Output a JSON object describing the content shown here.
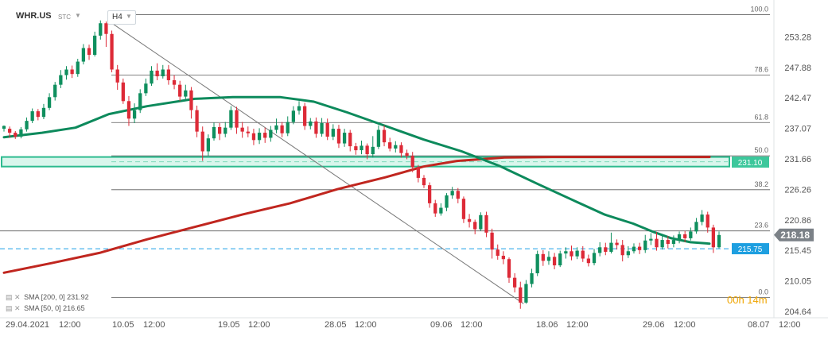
{
  "header": {
    "symbol": "WHR.US",
    "market": "STC",
    "timeframe": "H4"
  },
  "indicators": [
    {
      "text": "SMA [200, 0] 231.92",
      "color": "#c0261f"
    },
    {
      "text": "SMA [50, 0] 216.65",
      "color": "#0d8a5c"
    }
  ],
  "countdown": "00h 14m",
  "chart_data": {
    "type": "candlestick",
    "ylim": [
      204.64,
      257.0
    ],
    "y_ticks": [
      {
        "value": 253.28,
        "label": "253.28"
      },
      {
        "value": 247.88,
        "label": "247.88"
      },
      {
        "value": 242.47,
        "label": "242.47"
      },
      {
        "value": 237.07,
        "label": "237.07"
      },
      {
        "value": 231.66,
        "label": "231.66"
      },
      {
        "value": 226.26,
        "label": "226.26"
      },
      {
        "value": 220.86,
        "label": "220.86"
      },
      {
        "value": 215.45,
        "label": "215.45"
      },
      {
        "value": 210.05,
        "label": "210.05"
      },
      {
        "value": 204.64,
        "label": "204.64"
      }
    ],
    "x_tick_labels": [
      "29.04.2021",
      "12:00",
      "10.05",
      "12:00",
      "19.05",
      "12:00",
      "28.05",
      "12:00",
      "09.06",
      "12:00",
      "18.06",
      "12:00",
      "29.06",
      "12:00",
      "08.07",
      "12:00"
    ],
    "x_range": [
      0,
      150
    ],
    "x_ticks": [
      0,
      12,
      22,
      34,
      44,
      56,
      66,
      78,
      88,
      100,
      110,
      122,
      132,
      144,
      153,
      165
    ],
    "fibonacci": {
      "levels": [
        {
          "label": "100.0",
          "value": 257.2
        },
        {
          "label": "78.6",
          "value": 246.5
        },
        {
          "label": "61.8",
          "value": 238.1
        },
        {
          "label": "50.0",
          "value": 232.2
        },
        {
          "label": "38.2",
          "value": 226.2
        },
        {
          "label": "23.6",
          "value": 218.9
        },
        {
          "label": "0.0",
          "value": 207.1
        }
      ]
    },
    "price_labels": {
      "current": {
        "value": 218.18,
        "label": "218.18"
      },
      "zone": {
        "value": 231.1,
        "label": "231.10"
      },
      "dashed": {
        "value": 215.75,
        "label": "215.75"
      }
    },
    "zone": {
      "low": 230.3,
      "high": 232.0
    },
    "trendline": {
      "x1": 23,
      "y1": 255.5,
      "x2": 109,
      "y2": 206.0
    },
    "sma200": [
      [
        0,
        211.5
      ],
      [
        10,
        213.2
      ],
      [
        20,
        215.0
      ],
      [
        30,
        217.4
      ],
      [
        40,
        219.6
      ],
      [
        50,
        221.8
      ],
      [
        60,
        223.8
      ],
      [
        70,
        226.3
      ],
      [
        80,
        228.4
      ],
      [
        88,
        230.3
      ],
      [
        95,
        231.3
      ],
      [
        105,
        231.9
      ],
      [
        115,
        232.0
      ],
      [
        125,
        232.0
      ],
      [
        135,
        232.0
      ],
      [
        148,
        232.0
      ]
    ],
    "sma50": [
      [
        0,
        235.5
      ],
      [
        8,
        236.3
      ],
      [
        15,
        237.2
      ],
      [
        22,
        239.6
      ],
      [
        30,
        241.0
      ],
      [
        40,
        242.3
      ],
      [
        48,
        242.6
      ],
      [
        58,
        242.6
      ],
      [
        65,
        241.8
      ],
      [
        72,
        239.9
      ],
      [
        80,
        237.5
      ],
      [
        88,
        235.1
      ],
      [
        96,
        233.0
      ],
      [
        104,
        230.4
      ],
      [
        112,
        227.2
      ],
      [
        120,
        224.1
      ],
      [
        126,
        221.8
      ],
      [
        132,
        220.2
      ],
      [
        136,
        218.8
      ],
      [
        140,
        217.6
      ],
      [
        144,
        216.9
      ],
      [
        148,
        216.65
      ]
    ],
    "candles": [
      [
        237.0,
        237.5,
        236.5,
        237.6
      ],
      [
        237.0,
        236.3,
        235.4,
        237.4
      ],
      [
        236.3,
        235.6,
        235.2,
        236.6
      ],
      [
        235.6,
        236.9,
        235.3,
        237.3
      ],
      [
        236.9,
        238.4,
        236.5,
        239.0
      ],
      [
        238.4,
        240.1,
        238.0,
        240.6
      ],
      [
        240.1,
        239.1,
        238.5,
        240.5
      ],
      [
        239.1,
        240.7,
        238.7,
        241.4
      ],
      [
        240.7,
        242.6,
        240.3,
        243.3
      ],
      [
        242.6,
        244.8,
        242.0,
        245.3
      ],
      [
        244.8,
        246.5,
        244.2,
        247.4
      ],
      [
        246.5,
        247.5,
        245.7,
        248.1
      ],
      [
        247.5,
        246.7,
        246.0,
        248.2
      ],
      [
        246.7,
        248.9,
        246.2,
        249.4
      ],
      [
        248.9,
        251.3,
        248.4,
        252.0
      ],
      [
        251.3,
        250.1,
        249.2,
        251.9
      ],
      [
        250.1,
        253.5,
        249.8,
        254.2
      ],
      [
        253.5,
        255.7,
        252.8,
        256.2
      ],
      [
        255.7,
        253.8,
        251.5,
        256.0
      ],
      [
        253.8,
        247.5,
        247.0,
        254.4
      ],
      [
        247.5,
        245.2,
        243.9,
        248.3
      ],
      [
        245.2,
        241.9,
        241.4,
        245.9
      ],
      [
        241.9,
        238.8,
        237.5,
        242.8
      ],
      [
        238.8,
        240.3,
        238.0,
        241.5
      ],
      [
        240.3,
        243.3,
        239.8,
        244.0
      ],
      [
        243.3,
        245.0,
        242.8,
        245.9
      ],
      [
        245.0,
        247.3,
        244.6,
        248.1
      ],
      [
        247.3,
        246.3,
        245.6,
        248.6
      ],
      [
        246.3,
        247.5,
        245.9,
        248.3
      ],
      [
        247.5,
        245.6,
        244.8,
        248.3
      ],
      [
        245.6,
        244.8,
        244.0,
        246.5
      ],
      [
        244.8,
        242.7,
        241.9,
        245.5
      ],
      [
        242.7,
        243.8,
        242.0,
        244.8
      ],
      [
        243.8,
        240.3,
        238.8,
        244.4
      ],
      [
        240.3,
        236.5,
        235.5,
        241.1
      ],
      [
        236.5,
        233.0,
        231.3,
        237.4
      ],
      [
        233.0,
        235.3,
        232.2,
        236.0
      ],
      [
        235.3,
        237.3,
        234.9,
        238.1
      ],
      [
        237.3,
        236.1,
        235.0,
        238.0
      ],
      [
        236.1,
        237.2,
        235.5,
        238.2
      ],
      [
        237.2,
        240.3,
        236.8,
        241.0
      ],
      [
        240.3,
        237.2,
        236.1,
        240.9
      ],
      [
        237.2,
        236.5,
        235.4,
        238.2
      ],
      [
        236.5,
        236.2,
        235.5,
        237.4
      ],
      [
        236.2,
        235.0,
        234.1,
        237.0
      ],
      [
        235.0,
        236.3,
        234.3,
        237.1
      ],
      [
        236.3,
        235.4,
        234.5,
        237.2
      ],
      [
        235.4,
        236.8,
        234.7,
        237.5
      ],
      [
        236.8,
        237.6,
        236.2,
        238.8
      ],
      [
        237.6,
        236.2,
        235.5,
        238.2
      ],
      [
        236.2,
        238.2,
        235.7,
        239.2
      ],
      [
        238.2,
        240.2,
        237.8,
        241.0
      ],
      [
        240.2,
        241.0,
        239.5,
        241.9
      ],
      [
        241.0,
        237.5,
        236.8,
        241.6
      ],
      [
        237.5,
        238.3,
        236.9,
        238.9
      ],
      [
        238.3,
        236.1,
        235.4,
        239.0
      ],
      [
        236.1,
        238.0,
        235.6,
        238.9
      ],
      [
        238.0,
        235.6,
        235.0,
        238.8
      ],
      [
        235.6,
        237.0,
        235.0,
        237.8
      ],
      [
        237.0,
        234.4,
        233.6,
        237.7
      ],
      [
        234.4,
        236.3,
        233.8,
        237.0
      ],
      [
        236.3,
        233.9,
        233.0,
        236.8
      ],
      [
        233.9,
        233.2,
        232.4,
        234.5
      ],
      [
        233.2,
        234.0,
        232.5,
        234.9
      ],
      [
        234.0,
        232.5,
        231.6,
        234.4
      ],
      [
        232.5,
        233.8,
        231.9,
        235.7
      ],
      [
        233.8,
        236.8,
        233.4,
        237.6
      ],
      [
        236.8,
        234.6,
        233.9,
        237.6
      ],
      [
        234.6,
        233.5,
        233.0,
        235.4
      ],
      [
        233.5,
        234.1,
        232.8,
        234.8
      ],
      [
        234.1,
        232.7,
        231.9,
        234.6
      ],
      [
        232.7,
        232.2,
        231.6,
        233.3
      ],
      [
        232.2,
        230.2,
        229.3,
        232.9
      ],
      [
        230.2,
        228.3,
        227.5,
        230.6
      ],
      [
        228.3,
        227.0,
        226.5,
        228.8
      ],
      [
        227.0,
        223.8,
        223.0,
        227.5
      ],
      [
        223.8,
        222.0,
        221.4,
        224.4
      ],
      [
        222.0,
        223.0,
        221.6,
        223.8
      ],
      [
        223.0,
        225.2,
        222.4,
        225.6
      ],
      [
        225.2,
        226.0,
        224.6,
        226.7
      ],
      [
        226.0,
        224.6,
        223.8,
        226.5
      ],
      [
        224.6,
        221.0,
        220.3,
        225.0
      ],
      [
        221.0,
        220.5,
        219.5,
        221.9
      ],
      [
        220.5,
        219.2,
        218.3,
        220.9
      ],
      [
        219.2,
        221.7,
        218.9,
        222.2
      ],
      [
        221.7,
        218.6,
        217.8,
        222.3
      ],
      [
        218.6,
        215.6,
        214.0,
        219.3
      ],
      [
        215.6,
        214.5,
        213.8,
        216.5
      ],
      [
        214.5,
        213.9,
        213.0,
        215.3
      ],
      [
        213.9,
        210.6,
        209.7,
        214.2
      ],
      [
        210.6,
        208.9,
        208.0,
        211.4
      ],
      [
        208.9,
        206.2,
        205.1,
        209.9
      ],
      [
        206.2,
        209.5,
        206.0,
        210.2
      ],
      [
        209.5,
        211.4,
        208.9,
        212.2
      ],
      [
        211.4,
        214.8,
        210.9,
        215.4
      ],
      [
        214.8,
        213.6,
        212.7,
        215.5
      ],
      [
        213.6,
        214.3,
        212.9,
        215.3
      ],
      [
        214.3,
        212.8,
        212.1,
        215.0
      ],
      [
        212.8,
        214.9,
        212.5,
        215.4
      ],
      [
        214.9,
        215.3,
        214.0,
        216.0
      ],
      [
        215.3,
        214.4,
        213.7,
        216.3
      ],
      [
        214.4,
        215.4,
        213.9,
        216.0
      ],
      [
        215.4,
        214.0,
        213.4,
        216.2
      ],
      [
        214.0,
        213.2,
        212.6,
        214.7
      ],
      [
        213.2,
        215.0,
        212.8,
        215.7
      ],
      [
        215.0,
        216.0,
        214.4,
        216.9
      ],
      [
        216.0,
        215.2,
        214.6,
        216.8
      ],
      [
        215.2,
        216.8,
        214.9,
        218.6
      ],
      [
        216.8,
        216.4,
        215.6,
        217.4
      ],
      [
        216.4,
        214.6,
        213.5,
        217.3
      ],
      [
        214.6,
        215.3,
        214.1,
        216.2
      ],
      [
        215.3,
        216.1,
        214.9,
        216.7
      ],
      [
        216.1,
        215.5,
        214.8,
        216.8
      ],
      [
        215.5,
        217.2,
        215.0,
        218.2
      ],
      [
        217.2,
        217.5,
        216.4,
        218.5
      ],
      [
        217.5,
        216.0,
        215.4,
        218.7
      ],
      [
        216.0,
        217.3,
        215.6,
        218.2
      ],
      [
        217.3,
        216.6,
        215.8,
        218.0
      ],
      [
        216.6,
        217.3,
        216.0,
        218.1
      ],
      [
        217.3,
        218.3,
        216.7,
        218.8
      ],
      [
        218.3,
        217.6,
        216.9,
        218.9
      ],
      [
        217.6,
        218.8,
        217.2,
        219.5
      ],
      [
        218.8,
        220.5,
        218.4,
        221.2
      ],
      [
        220.5,
        221.8,
        219.9,
        222.6
      ],
      [
        221.8,
        219.5,
        218.6,
        222.3
      ],
      [
        219.5,
        216.0,
        215.0,
        220.0
      ],
      [
        216.0,
        218.18,
        215.8,
        218.8
      ]
    ]
  }
}
